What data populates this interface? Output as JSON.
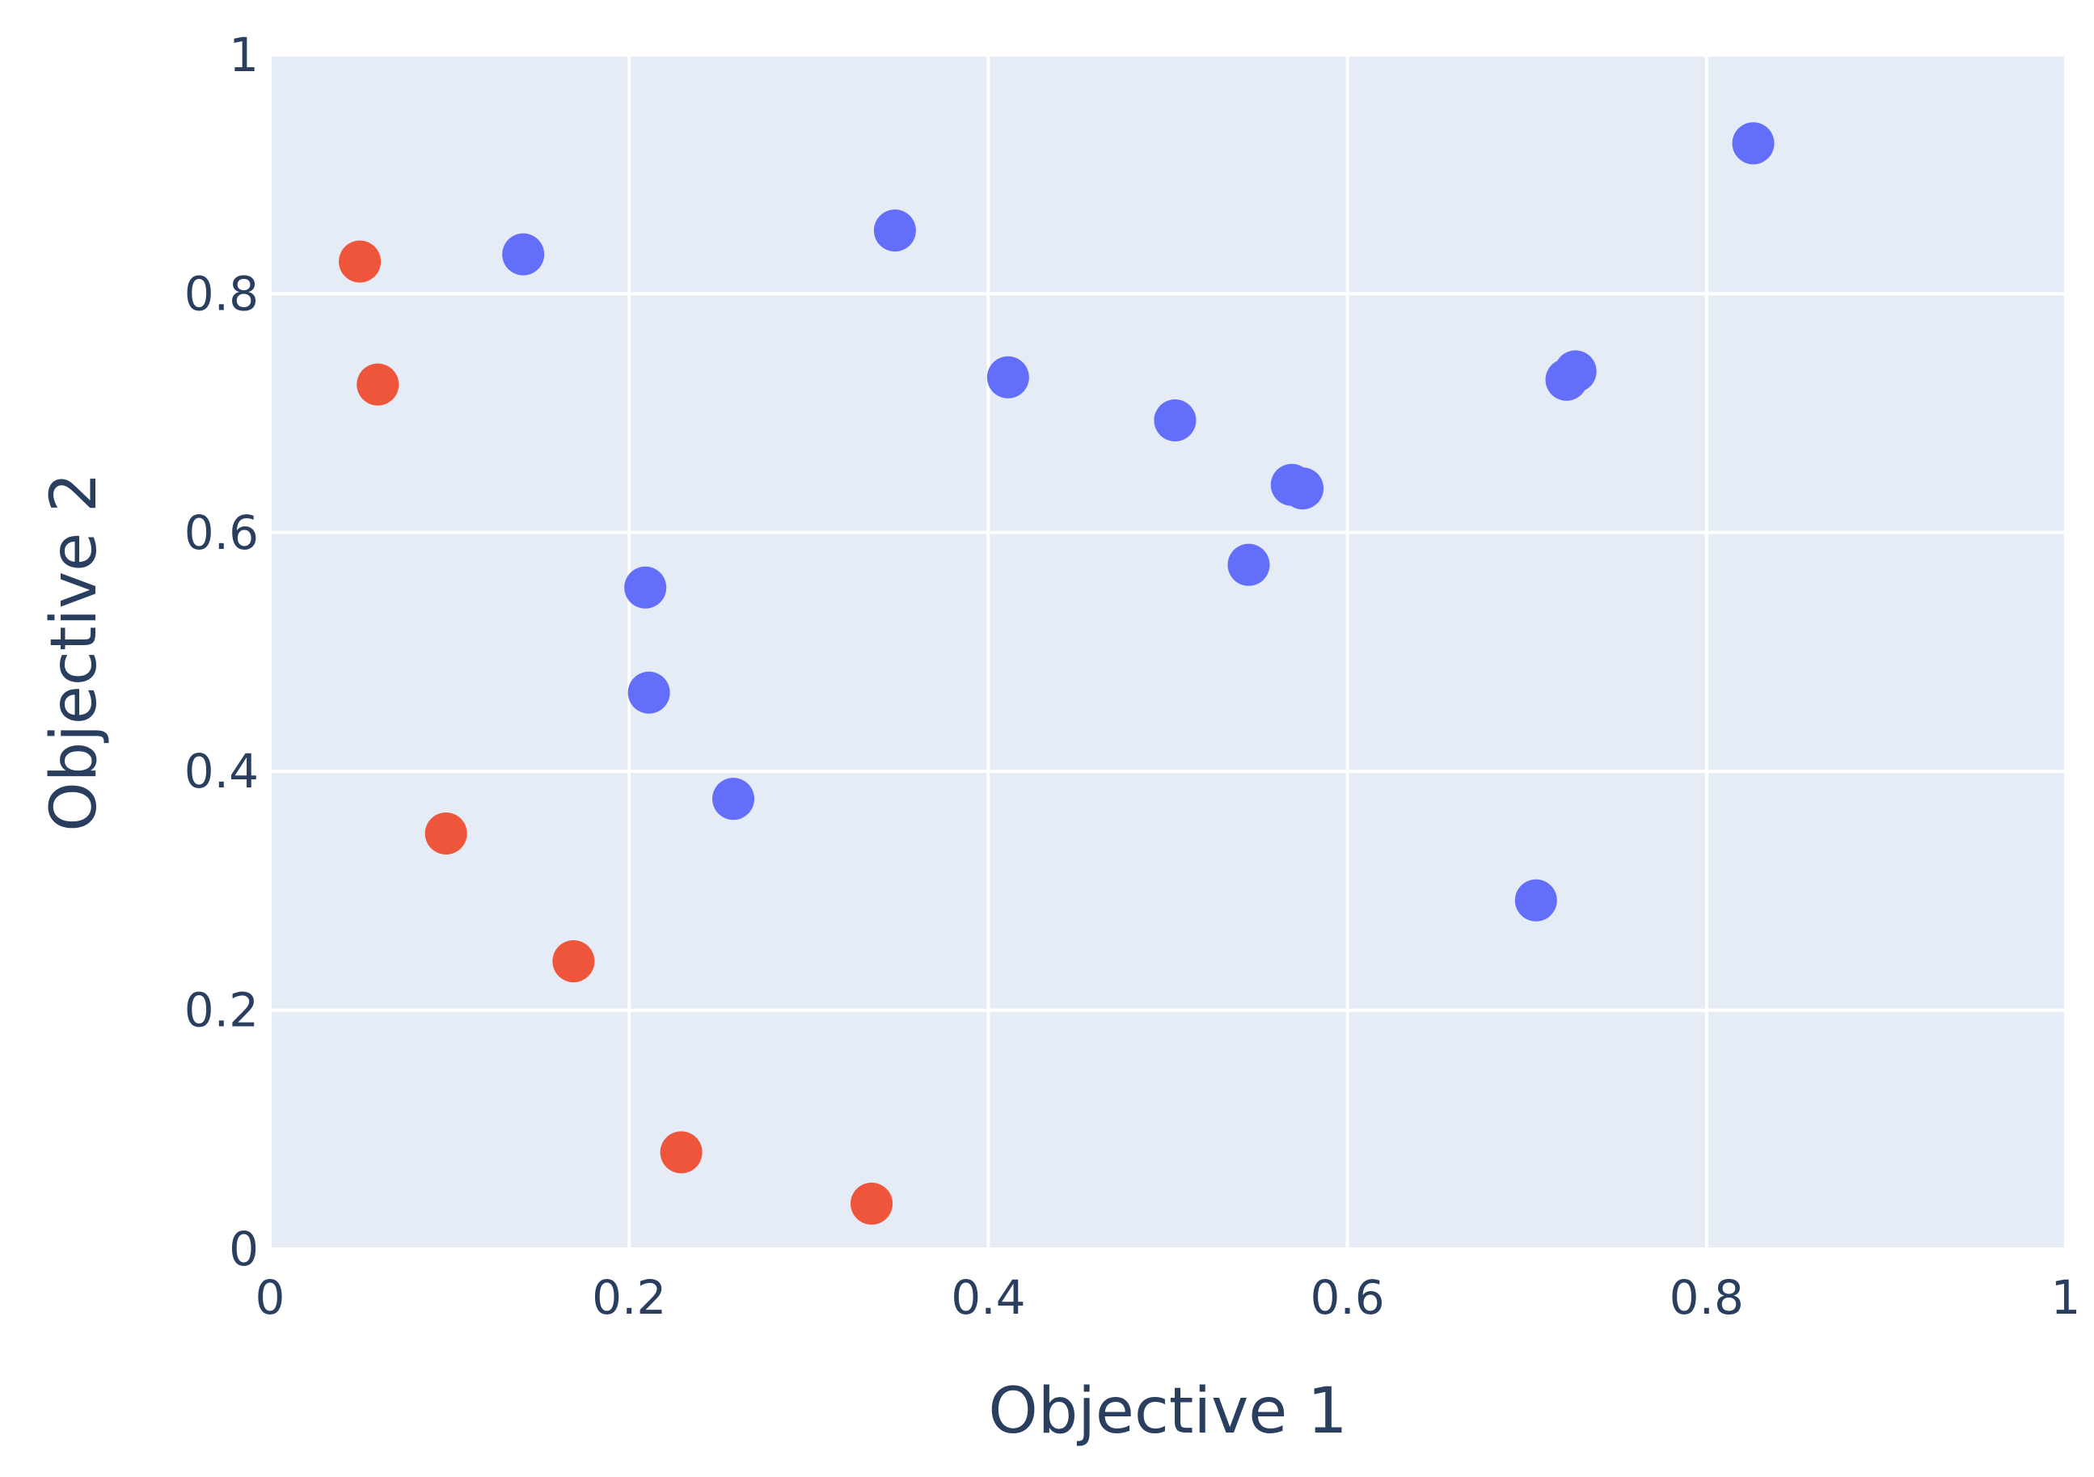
{
  "chart_data": {
    "type": "scatter",
    "title": "",
    "xlabel": "Objective 1",
    "ylabel": "Objective 2",
    "xlim": [
      0,
      1
    ],
    "ylim": [
      0,
      1
    ],
    "grid": true,
    "legend": "none",
    "x_ticks": [
      "0",
      "0.2",
      "0.4",
      "0.6",
      "0.8",
      "1"
    ],
    "y_ticks": [
      "0",
      "0.2",
      "0.4",
      "0.6",
      "0.8",
      "1"
    ],
    "plot_background": "#e5ecf6",
    "grid_color": "#ffffff",
    "text_color": "#2a3f5f",
    "series": [
      {
        "color": "#636efa",
        "points": [
          {
            "x": 0.141,
            "y": 0.833
          },
          {
            "x": 0.348,
            "y": 0.853
          },
          {
            "x": 0.826,
            "y": 0.926
          },
          {
            "x": 0.411,
            "y": 0.73
          },
          {
            "x": 0.504,
            "y": 0.694
          },
          {
            "x": 0.569,
            "y": 0.64
          },
          {
            "x": 0.575,
            "y": 0.637
          },
          {
            "x": 0.545,
            "y": 0.573
          },
          {
            "x": 0.722,
            "y": 0.728
          },
          {
            "x": 0.727,
            "y": 0.735
          },
          {
            "x": 0.209,
            "y": 0.554
          },
          {
            "x": 0.211,
            "y": 0.466
          },
          {
            "x": 0.258,
            "y": 0.377
          },
          {
            "x": 0.705,
            "y": 0.292
          }
        ]
      },
      {
        "color": "#ef553b",
        "points": [
          {
            "x": 0.05,
            "y": 0.827
          },
          {
            "x": 0.06,
            "y": 0.724
          },
          {
            "x": 0.098,
            "y": 0.348
          },
          {
            "x": 0.169,
            "y": 0.241
          },
          {
            "x": 0.229,
            "y": 0.081
          },
          {
            "x": 0.335,
            "y": 0.038
          }
        ]
      }
    ]
  }
}
